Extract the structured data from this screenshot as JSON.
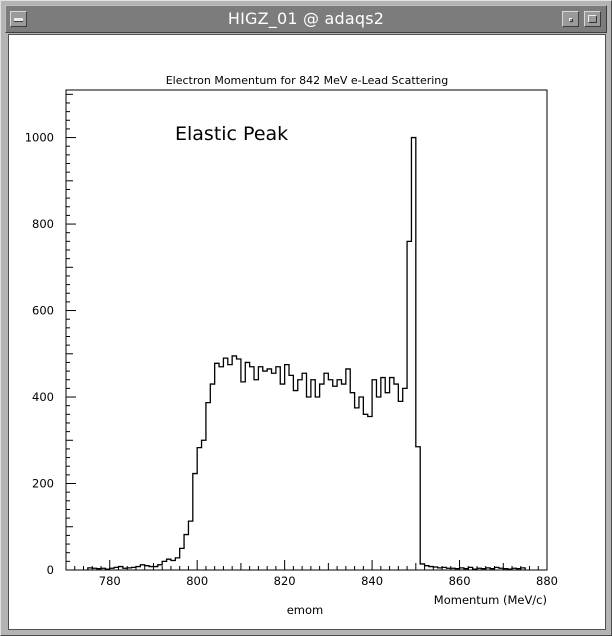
{
  "window": {
    "title": "HIGZ_01 @ adaqs2",
    "icons": {
      "menu": "window-menu-icon",
      "minimize": "minimize-icon",
      "maximize": "maximize-icon"
    }
  },
  "chart_data": {
    "type": "histogram",
    "title": "Electron Momentum for 842 MeV e-Lead Scattering",
    "annotation": "Elastic Peak",
    "xlabel": "Momentum  (MeV/c)",
    "histogram_name": "emom",
    "xlim": [
      770,
      880
    ],
    "ylim": [
      0,
      1110
    ],
    "x_ticks": [
      780,
      800,
      820,
      840,
      860,
      880
    ],
    "y_ticks": [
      0,
      200,
      400,
      600,
      800,
      1000
    ],
    "x_tick_labels": [
      "780",
      "800",
      "820",
      "840",
      "860",
      "880"
    ],
    "y_tick_labels": [
      "0",
      "200",
      "400",
      "600",
      "800",
      "1000"
    ],
    "bin_edges_start": 775,
    "bin_width": 1,
    "values": [
      5,
      4,
      3,
      4,
      2,
      4,
      6,
      8,
      4,
      5,
      6,
      8,
      12,
      10,
      8,
      8,
      12,
      20,
      25,
      22,
      28,
      50,
      82,
      113,
      223,
      283,
      300,
      387,
      430,
      478,
      470,
      490,
      475,
      495,
      488,
      435,
      480,
      470,
      440,
      470,
      460,
      465,
      455,
      470,
      430,
      475,
      450,
      415,
      440,
      455,
      400,
      440,
      400,
      430,
      455,
      440,
      425,
      440,
      430,
      465,
      410,
      375,
      400,
      360,
      355,
      440,
      400,
      445,
      410,
      445,
      430,
      390,
      420,
      760,
      1000,
      285,
      14,
      10,
      8,
      7,
      5,
      6,
      4,
      4,
      3,
      5,
      3,
      6,
      2,
      4,
      3,
      5,
      3,
      6,
      4,
      3,
      2,
      4,
      3,
      5
    ],
    "grid": false,
    "line_color": "#000000"
  }
}
